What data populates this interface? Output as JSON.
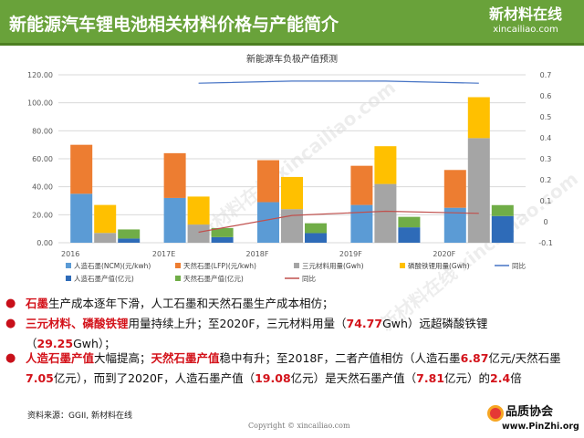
{
  "header": {
    "title": "新能源汽车锂电池相关材料价格与产能简介",
    "logo_cn": "新材料在线",
    "logo_en": "xincailiao.com"
  },
  "colors": {
    "header_bg": "#69a23a",
    "blue": "#5b9bd5",
    "orange": "#ed7d31",
    "gray": "#a5a5a5",
    "yellow": "#ffc000",
    "navy": "#2e6bb8",
    "green": "#70ad47",
    "accent_red": "#d3121a"
  },
  "chart_data": {
    "type": "bar",
    "title": "新能源车负极产值预测",
    "categories": [
      "2016",
      "2017E",
      "2018F",
      "2019F",
      "2020F"
    ],
    "stacks": [
      {
        "segments": [
          {
            "name": "人造石墨(NCM)(元/kwh)",
            "color": "#5b9bd5",
            "values": [
              35,
              32,
              29,
              27,
              25
            ]
          },
          {
            "name": "天然石墨(LFP)(元/kwh)",
            "color": "#ed7d31",
            "values": [
              35,
              32,
              30,
              28,
              27
            ]
          }
        ]
      },
      {
        "segments": [
          {
            "name": "三元材料用量(Gwh)",
            "color": "#a5a5a5",
            "values": [
              7,
              13,
              24,
              42,
              74.77
            ]
          },
          {
            "name": "磷酸铁锂用量(Gwh)",
            "color": "#ffc000",
            "values": [
              20,
              20,
              23,
              27,
              29.25
            ]
          }
        ]
      },
      {
        "segments": [
          {
            "name": "人造石墨产值(亿元)",
            "color": "#2e6bb8",
            "values": [
              3,
              4,
              6.87,
              11,
              19.08
            ]
          },
          {
            "name": "天然石墨产值(亿元)",
            "color": "#70ad47",
            "values": [
              6.5,
              6.5,
              7.05,
              7.5,
              7.81
            ]
          }
        ]
      }
    ],
    "lines": [
      {
        "name": "同比",
        "color": "#4472c4",
        "axis": "right",
        "values": [
          null,
          0.66,
          0.67,
          0.67,
          0.66
        ]
      },
      {
        "name": "同比",
        "color": "#c0504d",
        "axis": "right",
        "values": [
          null,
          -0.05,
          0.03,
          0.05,
          0.04
        ]
      }
    ],
    "ylim_left": [
      0,
      120
    ],
    "yticks_left": [
      "0.00",
      "20.00",
      "40.00",
      "60.00",
      "80.00",
      "100.00",
      "120.00"
    ],
    "ylim_right": [
      -0.1,
      0.7
    ],
    "yticks_right": [
      "-0.1",
      "0",
      "0.1",
      "0.2",
      "0.3",
      "0.4",
      "0.5",
      "0.6",
      "0.7"
    ],
    "grid": true,
    "legend_position": "bottom"
  },
  "bullets": {
    "b1": [
      "石墨",
      "生产成本逐年下滑，人工石墨和天然石墨生产成本相仿；"
    ],
    "b2": [
      "三元材料、磷酸铁锂",
      "用量持续上升；至2020F，三元材料用量（",
      "74.77",
      "Gwh）远超磷酸铁锂（",
      "29.25",
      "Gwh）；"
    ],
    "b3": [
      "人造石墨产值",
      "大幅提高；",
      "天然石墨产值",
      "稳中有升；至2018F，二者产值相仿（人造石墨",
      "6.87",
      "亿元/天然石墨",
      "7.05",
      "亿元），而到了2020F，人造石墨产值（",
      "19.08",
      "亿元）是天然石墨产值（",
      "7.81",
      "亿元）的",
      "2.4",
      "倍"
    ]
  },
  "source": "资料来源：GGII, 新材料在线",
  "copyright": "Copyright © xincailiao.com",
  "pinzhi": {
    "cn": "品质协会",
    "en": "www.PinZhi.org"
  },
  "watermark": "新材料在线 xincailiao.com"
}
